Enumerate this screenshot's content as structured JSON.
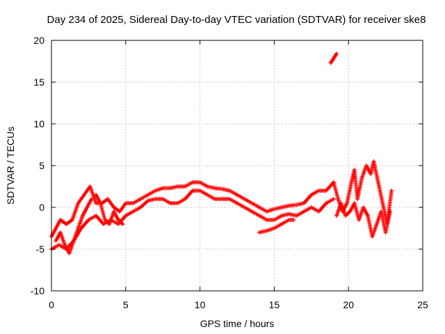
{
  "chart_data": {
    "type": "scatter",
    "title": "Day 234 of 2025, Sidereal Day-to-day VTEC variation (SDTVAR) for receiver ske8",
    "xlabel": "GPS time / hours",
    "ylabel": "SDTVAR / TECUs",
    "xlim": [
      0,
      25
    ],
    "ylim": [
      -10,
      20
    ],
    "xticks": [
      0,
      5,
      10,
      15,
      20,
      25
    ],
    "yticks": [
      -10,
      -5,
      0,
      5,
      10,
      15,
      20
    ],
    "grid": true,
    "marker": "+",
    "color": "#ff0000",
    "series": [
      {
        "name": "band-upper",
        "x": [
          0.0,
          0.3,
          0.6,
          1.0,
          1.4,
          1.8,
          2.2,
          2.6,
          3.0,
          3.4,
          3.8,
          4.2,
          4.6,
          5.0,
          5.5,
          6.0,
          6.5,
          7.0,
          7.5,
          8.0,
          8.5,
          9.0,
          9.5,
          10.0,
          10.5,
          11.0,
          11.5,
          12.0,
          12.5,
          13.0,
          13.5,
          14.0,
          14.5,
          15.0,
          15.5,
          16.0,
          16.5,
          17.0,
          17.5,
          18.0,
          18.5,
          19.0
        ],
        "y": [
          -3.5,
          -2.5,
          -1.5,
          -2.0,
          -1.5,
          0.5,
          1.5,
          2.5,
          0.5,
          0.5,
          1.0,
          0.0,
          -0.5,
          0.5,
          0.5,
          1.0,
          1.5,
          2.0,
          2.3,
          2.3,
          2.5,
          2.5,
          3.0,
          3.0,
          2.5,
          2.3,
          2.2,
          2.0,
          1.5,
          1.0,
          0.5,
          0.0,
          -0.5,
          -0.2,
          0.0,
          0.2,
          0.3,
          0.5,
          1.5,
          2.0,
          2.0,
          3.0
        ]
      },
      {
        "name": "band-lower",
        "x": [
          0.0,
          0.5,
          1.0,
          1.5,
          2.0,
          2.5,
          3.0,
          3.5,
          4.0,
          4.5,
          5.0,
          5.5,
          6.0,
          6.5,
          7.0,
          7.5,
          8.0,
          8.5,
          9.0,
          9.5,
          10.0,
          10.5,
          11.0,
          11.5,
          12.0,
          12.5,
          13.0,
          13.5,
          14.0,
          14.5,
          15.0,
          15.5,
          16.0,
          16.5,
          17.0,
          17.5,
          18.0,
          18.5,
          19.0
        ],
        "y": [
          -5.0,
          -4.5,
          -5.0,
          -4.0,
          -2.5,
          -1.5,
          -1.0,
          -2.0,
          -1.5,
          -2.0,
          -1.0,
          -0.5,
          0.0,
          0.8,
          1.0,
          1.0,
          0.5,
          0.5,
          1.0,
          2.0,
          2.0,
          1.5,
          1.0,
          1.0,
          1.0,
          0.5,
          0.0,
          -0.5,
          -1.0,
          -1.5,
          -1.5,
          -1.0,
          -0.8,
          -1.0,
          -0.5,
          0.0,
          -0.5,
          0.5,
          1.0
        ]
      },
      {
        "name": "early-loop",
        "x": [
          0.3,
          0.6,
          0.9,
          1.2,
          1.5,
          1.8,
          2.1,
          2.4,
          2.7
        ],
        "y": [
          -4.0,
          -3.0,
          -4.5,
          -5.5,
          -4.0,
          -2.5,
          -1.0,
          0.0,
          1.0
        ]
      },
      {
        "name": "mid-dip",
        "x": [
          3.0,
          3.3,
          3.6,
          3.9,
          4.2,
          4.5,
          4.8
        ],
        "y": [
          1.5,
          0.5,
          -1.5,
          -2.0,
          -0.5,
          -1.5,
          -2.0
        ]
      },
      {
        "name": "late-segment",
        "x": [
          14.0,
          14.5,
          15.0,
          15.5,
          16.0,
          16.3
        ],
        "y": [
          -3.0,
          -2.8,
          -2.5,
          -2.0,
          -1.5,
          -1.5
        ]
      },
      {
        "name": "outlier",
        "x": [
          18.8,
          18.95,
          19.05,
          19.2
        ],
        "y": [
          17.3,
          17.7,
          18.0,
          18.4
        ]
      },
      {
        "name": "end-cluster-1",
        "x": [
          19.0,
          19.3,
          19.6,
          19.9,
          20.2,
          20.4,
          20.6,
          20.9,
          21.2,
          21.5,
          21.7,
          22.0,
          22.3,
          22.6,
          22.9
        ],
        "y": [
          3.0,
          1.0,
          -0.5,
          0.5,
          3.0,
          4.5,
          1.0,
          3.5,
          5.0,
          4.0,
          5.5,
          3.0,
          0.5,
          -2.0,
          2.0
        ]
      },
      {
        "name": "end-cluster-2",
        "x": [
          19.2,
          19.5,
          19.8,
          20.1,
          20.4,
          20.7,
          21.0,
          21.3,
          21.6,
          21.9,
          22.2,
          22.5,
          22.8
        ],
        "y": [
          -1.0,
          0.5,
          -1.0,
          -0.5,
          0.5,
          -1.5,
          0.0,
          -1.0,
          -3.5,
          -2.0,
          -0.5,
          -3.0,
          -0.5
        ]
      }
    ]
  }
}
